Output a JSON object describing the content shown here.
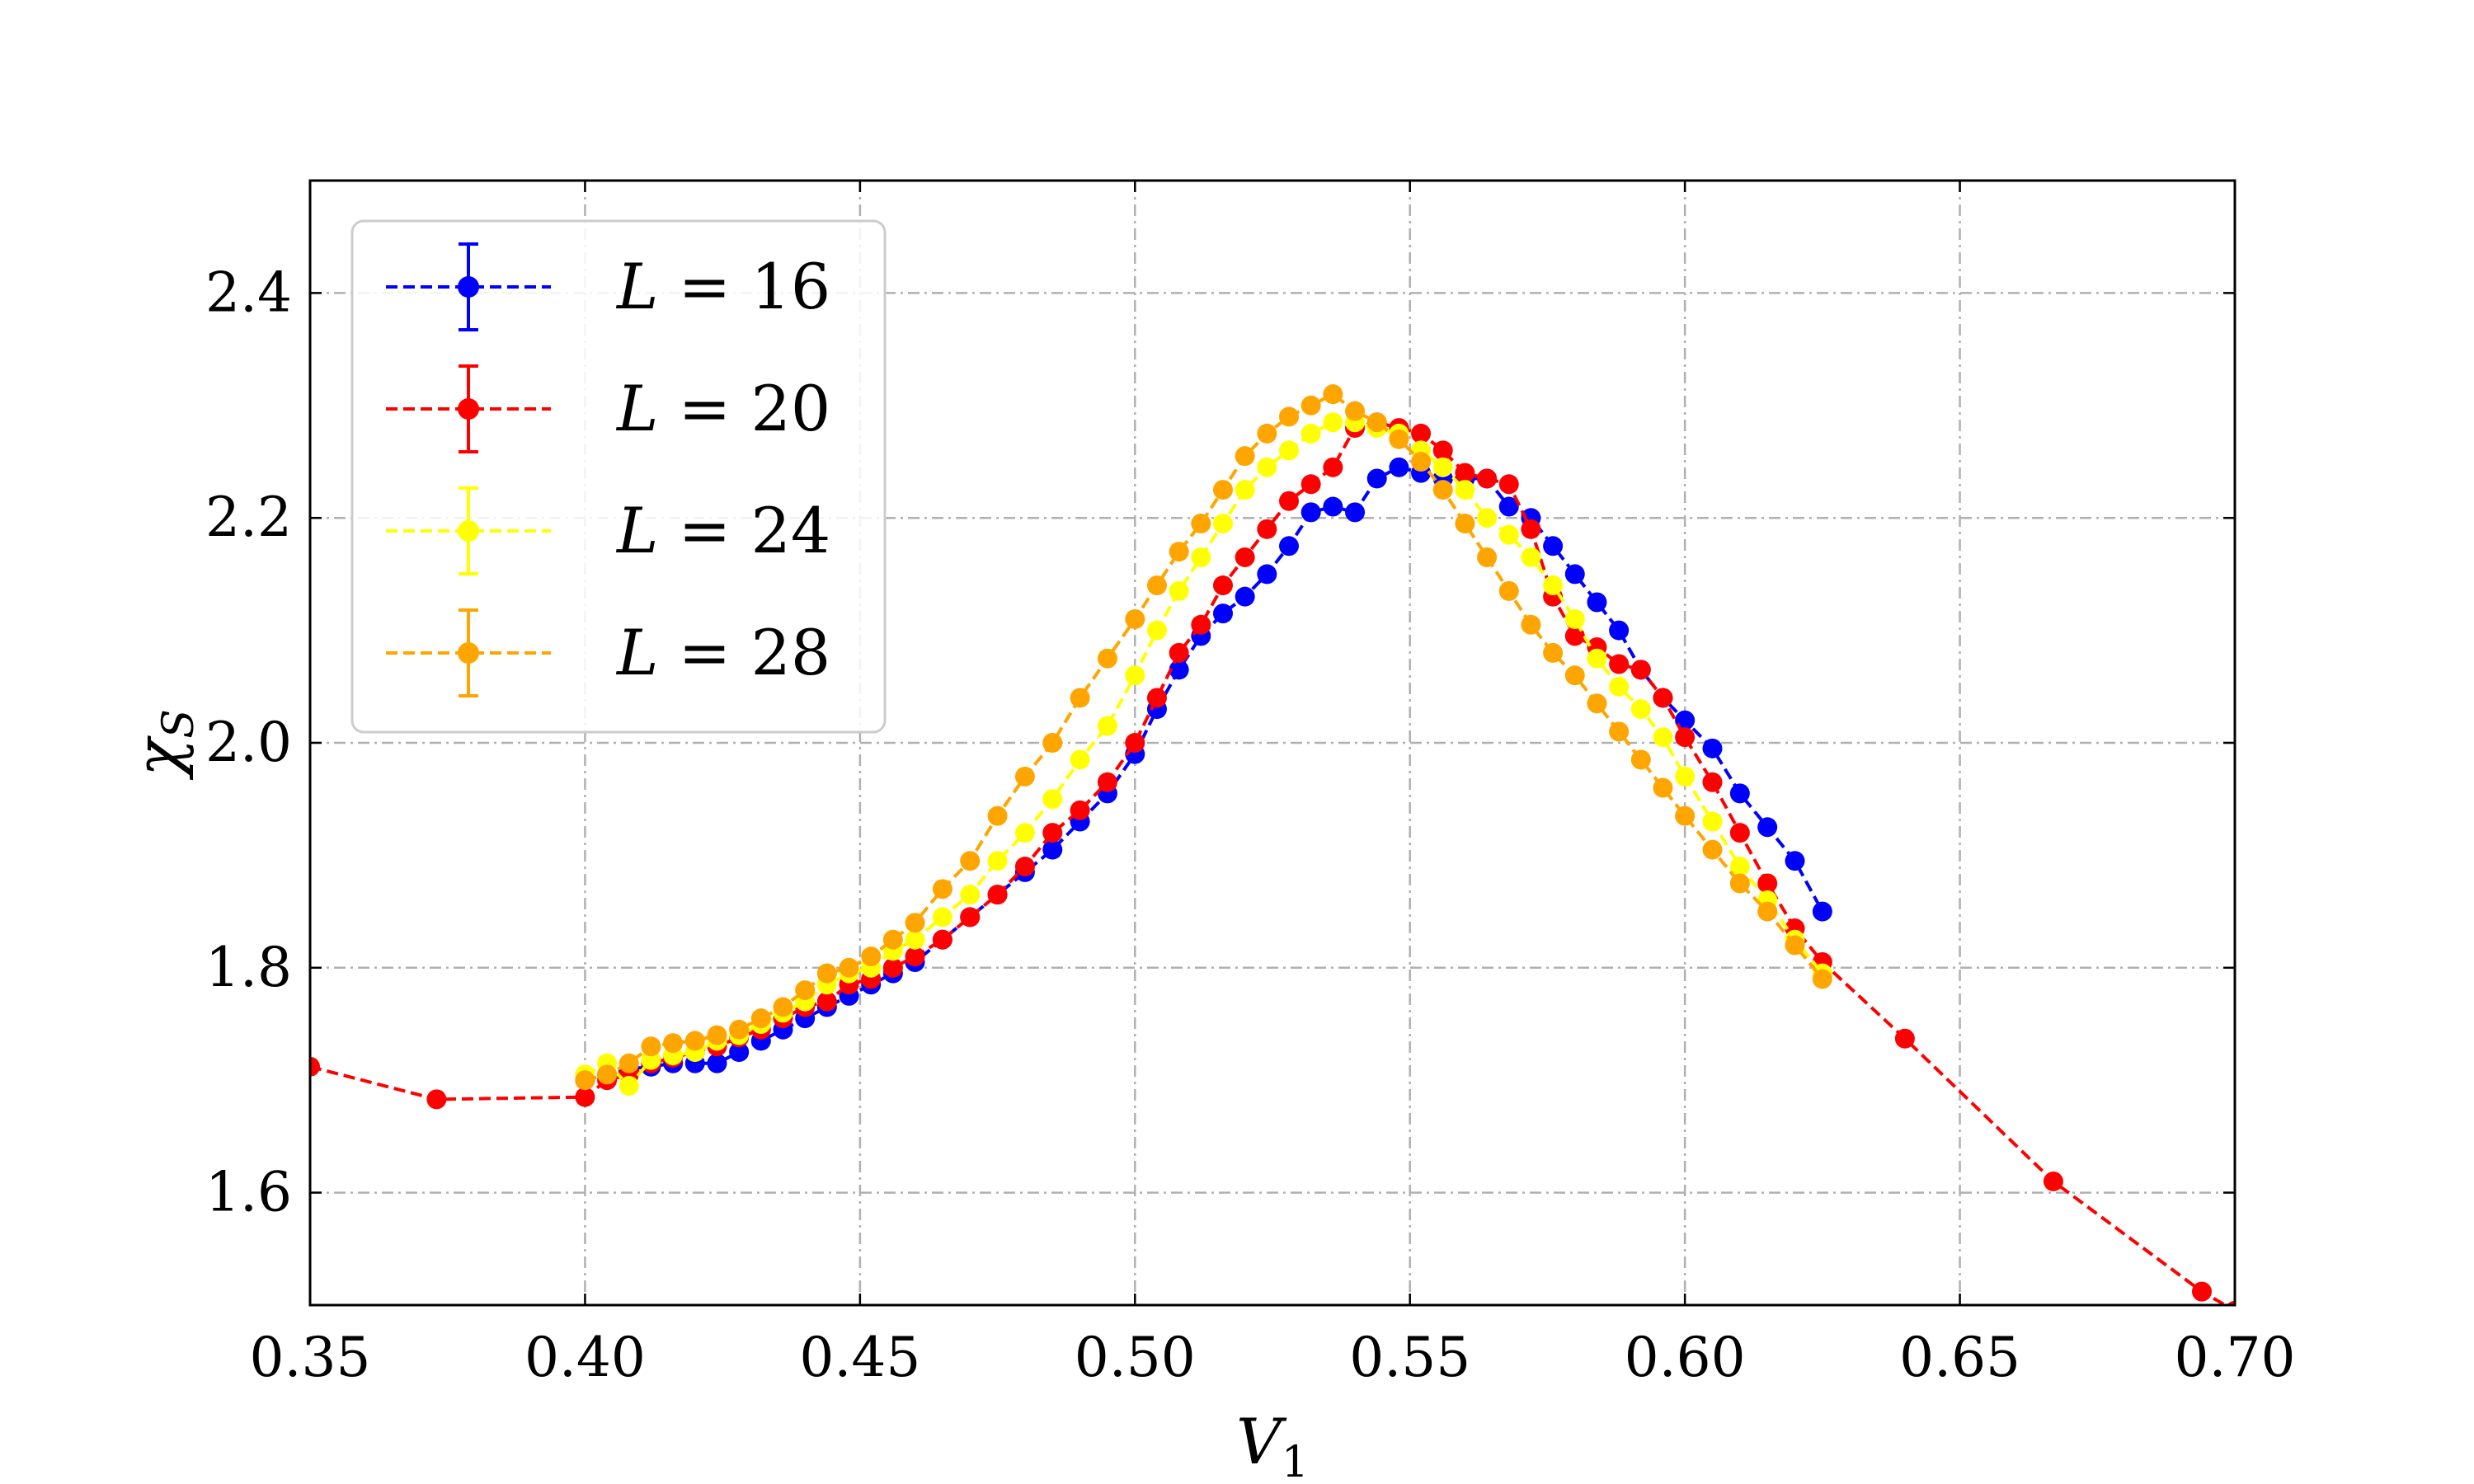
{
  "chart_data": {
    "type": "line",
    "xlabel": "V",
    "xlabel_sub": "1",
    "ylabel": "χ",
    "ylabel_sub": "S",
    "xlim": [
      0.35,
      0.7
    ],
    "ylim": [
      1.5,
      2.5
    ],
    "xticks": [
      "0.35",
      "0.40",
      "0.45",
      "0.50",
      "0.55",
      "0.60",
      "0.65",
      "0.70"
    ],
    "yticks": [
      "1.6",
      "1.8",
      "2.0",
      "2.2",
      "2.4"
    ],
    "grid": true,
    "legend_position": "top-left",
    "series": [
      {
        "name": "L = 16",
        "label_var": "L",
        "label_value": "16",
        "color": "#0000ff",
        "x": [
          0.4,
          0.404,
          0.408,
          0.412,
          0.416,
          0.42,
          0.424,
          0.428,
          0.432,
          0.436,
          0.44,
          0.444,
          0.448,
          0.452,
          0.456,
          0.46,
          0.465,
          0.47,
          0.475,
          0.48,
          0.485,
          0.49,
          0.495,
          0.5,
          0.504,
          0.508,
          0.512,
          0.516,
          0.52,
          0.524,
          0.528,
          0.532,
          0.536,
          0.54,
          0.544,
          0.548,
          0.552,
          0.556,
          0.56,
          0.564,
          0.568,
          0.572,
          0.576,
          0.58,
          0.584,
          0.588,
          0.592,
          0.596,
          0.6,
          0.605,
          0.61,
          0.615,
          0.62,
          0.625
        ],
        "y": [
          1.7,
          1.705,
          1.71,
          1.712,
          1.715,
          1.715,
          1.715,
          1.725,
          1.735,
          1.745,
          1.755,
          1.765,
          1.775,
          1.785,
          1.795,
          1.805,
          1.825,
          1.845,
          1.865,
          1.885,
          1.905,
          1.93,
          1.955,
          1.99,
          2.03,
          2.065,
          2.095,
          2.115,
          2.13,
          2.15,
          2.175,
          2.205,
          2.21,
          2.205,
          2.235,
          2.245,
          2.24,
          2.235,
          2.235,
          2.235,
          2.21,
          2.2,
          2.175,
          2.15,
          2.125,
          2.1,
          2.065,
          2.04,
          2.02,
          1.995,
          1.955,
          1.925,
          1.895,
          1.85
        ]
      },
      {
        "name": "L = 20",
        "label_var": "L",
        "label_value": "20",
        "color": "#ff0000",
        "x": [
          0.35,
          0.373,
          0.4,
          0.404,
          0.408,
          0.412,
          0.416,
          0.42,
          0.424,
          0.428,
          0.432,
          0.436,
          0.44,
          0.444,
          0.448,
          0.452,
          0.456,
          0.46,
          0.465,
          0.47,
          0.475,
          0.48,
          0.485,
          0.49,
          0.495,
          0.5,
          0.504,
          0.508,
          0.512,
          0.516,
          0.52,
          0.524,
          0.528,
          0.532,
          0.536,
          0.54,
          0.544,
          0.548,
          0.552,
          0.556,
          0.56,
          0.564,
          0.568,
          0.572,
          0.576,
          0.58,
          0.584,
          0.588,
          0.592,
          0.596,
          0.6,
          0.605,
          0.61,
          0.615,
          0.62,
          0.625,
          0.64,
          0.667,
          0.694,
          0.7
        ],
        "y": [
          1.712,
          1.683,
          1.685,
          1.7,
          1.705,
          1.715,
          1.72,
          1.725,
          1.73,
          1.738,
          1.745,
          1.755,
          1.765,
          1.77,
          1.785,
          1.79,
          1.8,
          1.81,
          1.825,
          1.845,
          1.865,
          1.89,
          1.92,
          1.94,
          1.965,
          2.0,
          2.04,
          2.08,
          2.105,
          2.14,
          2.165,
          2.19,
          2.215,
          2.23,
          2.245,
          2.28,
          2.285,
          2.28,
          2.275,
          2.26,
          2.24,
          2.235,
          2.23,
          2.19,
          2.13,
          2.095,
          2.085,
          2.07,
          2.065,
          2.04,
          2.005,
          1.965,
          1.92,
          1.875,
          1.835,
          1.805,
          1.737,
          1.61,
          1.512,
          1.495
        ]
      },
      {
        "name": "L = 24",
        "label_var": "L",
        "label_value": "24",
        "color": "#ffff00",
        "x": [
          0.4,
          0.404,
          0.408,
          0.412,
          0.416,
          0.42,
          0.424,
          0.428,
          0.432,
          0.436,
          0.44,
          0.444,
          0.448,
          0.452,
          0.456,
          0.46,
          0.465,
          0.47,
          0.475,
          0.48,
          0.485,
          0.49,
          0.495,
          0.5,
          0.504,
          0.508,
          0.512,
          0.516,
          0.52,
          0.524,
          0.528,
          0.532,
          0.536,
          0.54,
          0.544,
          0.548,
          0.552,
          0.556,
          0.56,
          0.564,
          0.568,
          0.572,
          0.576,
          0.58,
          0.584,
          0.588,
          0.592,
          0.596,
          0.6,
          0.605,
          0.61,
          0.615,
          0.62,
          0.625
        ],
        "y": [
          1.705,
          1.715,
          1.695,
          1.718,
          1.722,
          1.725,
          1.735,
          1.74,
          1.75,
          1.76,
          1.77,
          1.785,
          1.795,
          1.8,
          1.815,
          1.825,
          1.845,
          1.865,
          1.895,
          1.92,
          1.95,
          1.985,
          2.015,
          2.06,
          2.1,
          2.135,
          2.165,
          2.195,
          2.225,
          2.245,
          2.26,
          2.275,
          2.285,
          2.285,
          2.28,
          2.275,
          2.26,
          2.245,
          2.225,
          2.2,
          2.185,
          2.165,
          2.14,
          2.11,
          2.075,
          2.05,
          2.03,
          2.005,
          1.97,
          1.93,
          1.89,
          1.86,
          1.825,
          1.795
        ]
      },
      {
        "name": "L = 28",
        "label_var": "L",
        "label_value": "28",
        "color": "#ffa500",
        "x": [
          0.4,
          0.404,
          0.408,
          0.412,
          0.416,
          0.42,
          0.424,
          0.428,
          0.432,
          0.436,
          0.44,
          0.444,
          0.448,
          0.452,
          0.456,
          0.46,
          0.465,
          0.47,
          0.475,
          0.48,
          0.485,
          0.49,
          0.495,
          0.5,
          0.504,
          0.508,
          0.512,
          0.516,
          0.52,
          0.524,
          0.528,
          0.532,
          0.536,
          0.54,
          0.544,
          0.548,
          0.552,
          0.556,
          0.56,
          0.564,
          0.568,
          0.572,
          0.576,
          0.58,
          0.584,
          0.588,
          0.592,
          0.596,
          0.6,
          0.605,
          0.61,
          0.615,
          0.62,
          0.625
        ],
        "y": [
          1.7,
          1.705,
          1.715,
          1.73,
          1.733,
          1.735,
          1.74,
          1.745,
          1.755,
          1.765,
          1.78,
          1.795,
          1.8,
          1.81,
          1.825,
          1.84,
          1.87,
          1.895,
          1.935,
          1.97,
          2.0,
          2.04,
          2.075,
          2.11,
          2.14,
          2.17,
          2.195,
          2.225,
          2.255,
          2.275,
          2.29,
          2.3,
          2.31,
          2.295,
          2.285,
          2.27,
          2.25,
          2.225,
          2.195,
          2.165,
          2.135,
          2.105,
          2.08,
          2.06,
          2.035,
          2.01,
          1.985,
          1.96,
          1.935,
          1.905,
          1.875,
          1.85,
          1.82,
          1.79
        ]
      }
    ]
  }
}
